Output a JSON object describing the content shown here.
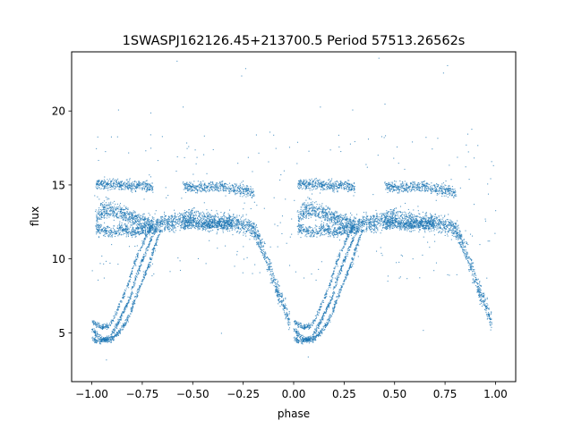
{
  "chart_data": {
    "type": "scatter",
    "title": "1SWASPJ162126.45+213700.5 Period 57513.26562s",
    "xlabel": "phase",
    "ylabel": "flux",
    "xlim": [
      -1.1,
      1.1
    ],
    "ylim": [
      1.7,
      24.0
    ],
    "xticks": [
      -1.0,
      -0.75,
      -0.5,
      -0.25,
      0.0,
      0.25,
      0.5,
      0.75,
      1.0
    ],
    "xtick_labels": [
      "−1.00",
      "−0.75",
      "−0.50",
      "−0.25",
      "0.00",
      "0.25",
      "0.50",
      "0.75",
      "1.00"
    ],
    "yticks": [
      5,
      10,
      15,
      20
    ],
    "ytick_labels": [
      "5",
      "10",
      "15",
      "20"
    ],
    "grid": false,
    "legend": "none",
    "marker_color": "#1f77b4",
    "series": [
      {
        "phase_x": [
          -0.98,
          -0.95,
          -0.92,
          -0.9,
          -0.88,
          -0.85,
          -0.82,
          -0.8,
          -0.78,
          -0.75,
          -0.72,
          -0.7,
          -0.68,
          -0.65,
          -0.6,
          -0.55,
          -0.5,
          -0.45,
          -0.4,
          -0.35,
          -0.3,
          -0.25,
          -0.22,
          -0.2,
          -0.18,
          -0.15,
          -0.12,
          -0.1,
          -0.07,
          -0.04,
          -0.02
        ],
        "flux_high_band": [
          15.1,
          15.1,
          15.0,
          15.0,
          15.1,
          15.0,
          15.0,
          14.9,
          15.0,
          15.0,
          14.9,
          14.8,
          null,
          null,
          null,
          14.9,
          14.8,
          14.9,
          14.9,
          14.9,
          14.8,
          14.7,
          14.6,
          14.4,
          null,
          null,
          null,
          null,
          null,
          null,
          null
        ],
        "flux_mid_band": [
          12.8,
          13.3,
          13.5,
          13.3,
          13.2,
          13.1,
          12.9,
          12.8,
          12.6,
          12.5,
          12.4,
          12.3,
          12.3,
          12.4,
          12.5,
          12.7,
          12.9,
          12.7,
          12.6,
          12.5,
          12.4,
          12.3,
          12.2,
          12.0,
          11.5,
          10.5,
          9.5,
          8.5,
          7.5,
          6.5,
          5.6
        ],
        "flux_low_band": [
          12.0,
          12.0,
          11.9,
          11.8,
          11.9,
          12.0,
          11.9,
          11.8,
          11.9,
          12.0,
          12.1,
          12.2,
          null,
          null,
          null,
          12.3,
          12.4,
          12.3,
          12.3,
          12.4,
          12.5,
          null,
          null,
          null,
          null,
          null,
          null,
          null,
          null,
          null,
          null
        ]
      },
      {
        "phase_x": [
          -1.0,
          -0.98,
          -0.95,
          -0.92,
          -0.9,
          -0.88,
          -0.85,
          -0.82,
          -0.8,
          -0.78,
          -0.75,
          -0.72,
          -0.7,
          -0.68,
          -0.66
        ],
        "flux_rising_branch_a": [
          5.3,
          4.9,
          4.6,
          4.5,
          4.6,
          4.9,
          5.4,
          6.1,
          6.8,
          7.6,
          8.6,
          9.6,
          10.5,
          11.3,
          12.0
        ],
        "flux_rising_branch_b": [
          4.6,
          4.5,
          4.5,
          4.7,
          5.0,
          5.5,
          6.3,
          7.2,
          8.0,
          8.9,
          10.0,
          11.0,
          11.7,
          12.2,
          null
        ],
        "flux_rising_branch_c": [
          5.9,
          5.6,
          5.4,
          5.5,
          5.8,
          6.4,
          7.4,
          8.4,
          9.3,
          10.1,
          11.1,
          11.9,
          12.3,
          null,
          null
        ]
      }
    ],
    "outliers": [
      {
        "x": -0.87,
        "y": 20.1
      },
      {
        "x": -0.58,
        "y": 23.4
      },
      {
        "x": -0.71,
        "y": 19.9
      },
      {
        "x": -0.26,
        "y": 22.4
      },
      {
        "x": -0.24,
        "y": 22.9
      },
      {
        "x": -0.12,
        "y": 18.6
      },
      {
        "x": -0.82,
        "y": 17.2
      },
      {
        "x": -0.49,
        "y": 17.4
      },
      {
        "x": -0.93,
        "y": 3.2
      },
      {
        "x": -0.36,
        "y": 5.0
      },
      {
        "x": -0.55,
        "y": 20.3
      },
      {
        "x": -0.09,
        "y": 17.5
      }
    ]
  }
}
